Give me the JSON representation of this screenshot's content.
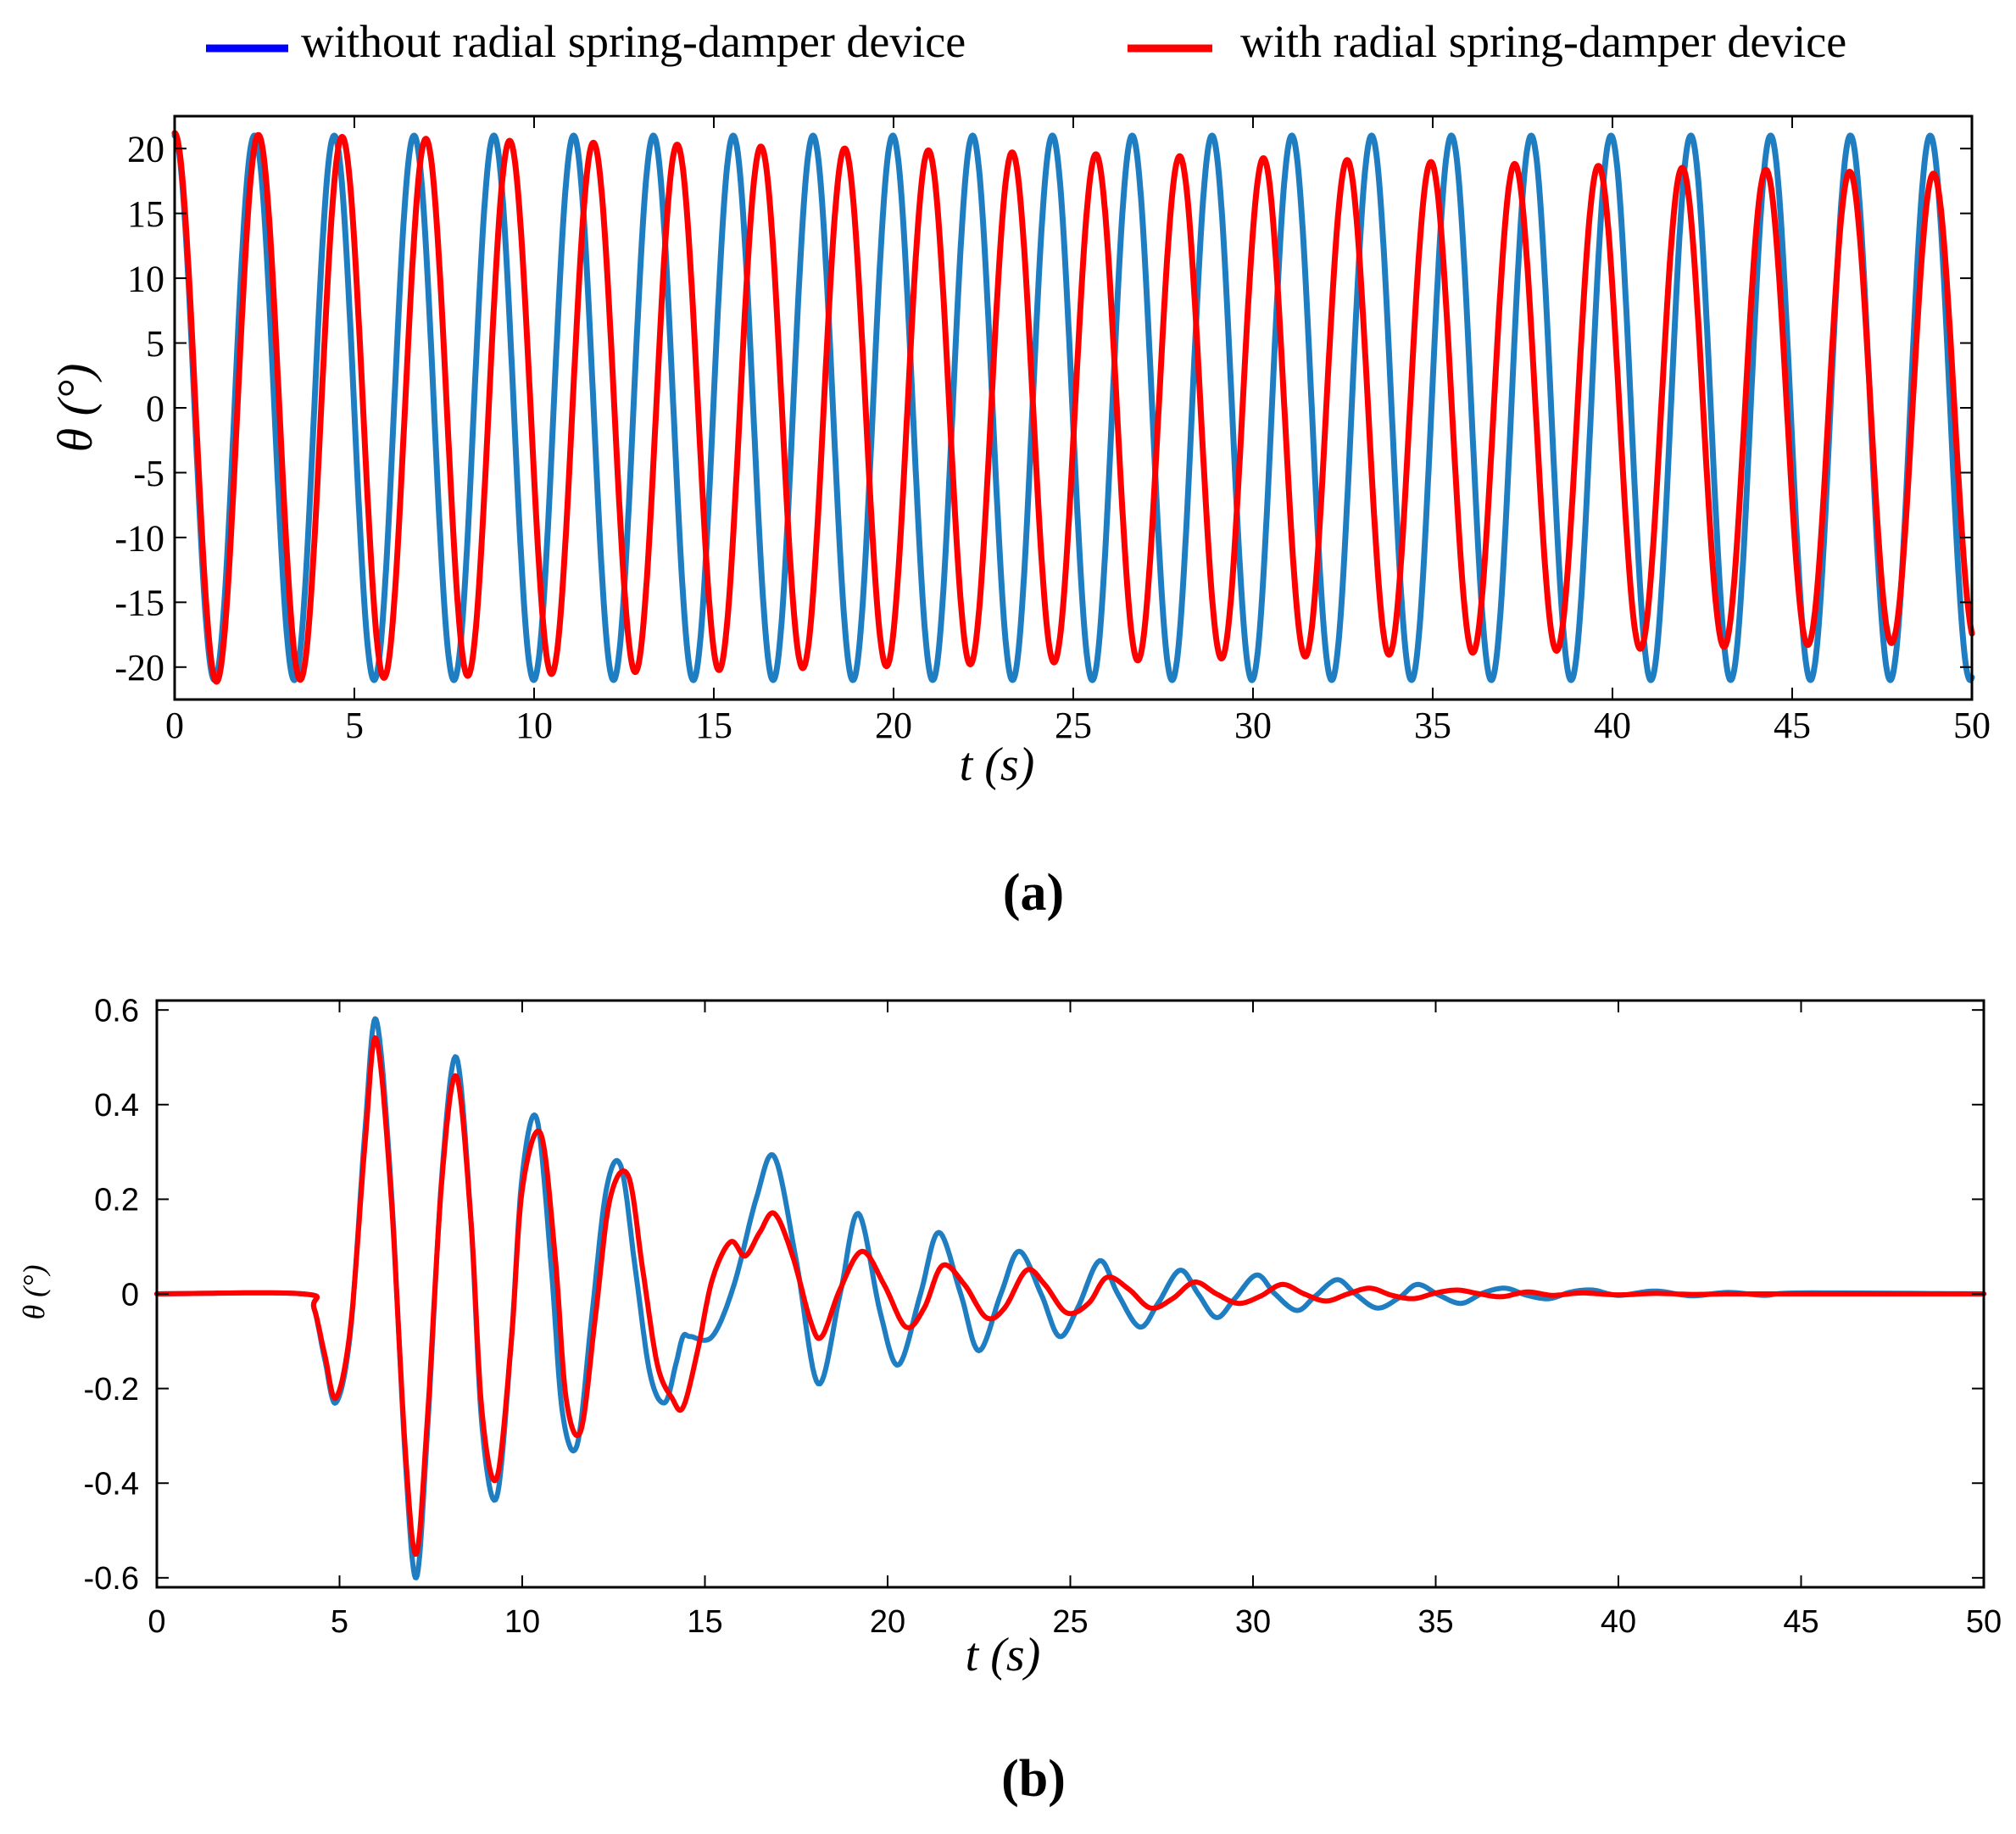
{
  "legend": {
    "items": [
      {
        "label": "without radial spring-damper device",
        "color": "#0000ff"
      },
      {
        "label": "with radial spring-damper device",
        "color": "#ff0000"
      }
    ]
  },
  "colors": {
    "series_without": "#1f7ec2",
    "series_with": "#ff0000",
    "axis": "#000000"
  },
  "chart_data": [
    {
      "panel": "(a)",
      "type": "line",
      "xlabel": "t (s)",
      "ylabel": "θ (°)",
      "xlim": [
        0,
        50
      ],
      "ylim": [
        -22.5,
        22.5
      ],
      "x_ticks": [
        0,
        5,
        10,
        15,
        20,
        25,
        30,
        35,
        40,
        45,
        50
      ],
      "y_ticks": [
        20,
        15,
        10,
        5,
        0,
        -5,
        -10,
        -15,
        -20
      ],
      "series": [
        {
          "name": "without radial spring-damper device",
          "model": "cosine",
          "amplitude_start": 21.0,
          "amplitude_end": 21.0,
          "period": 2.22,
          "phase": 0.0
        },
        {
          "name": "with radial spring-damper device",
          "model": "cosine",
          "amplitude_start": 21.2,
          "amplitude_end": 18.0,
          "period": 2.33,
          "phase": 0.3
        }
      ]
    },
    {
      "panel": "(b)",
      "type": "line",
      "xlabel": "t (s)",
      "ylabel": "θ (°)",
      "xlim": [
        0,
        50
      ],
      "ylim": [
        -0.62,
        0.62
      ],
      "x_ticks": [
        0,
        5,
        10,
        15,
        20,
        25,
        30,
        35,
        40,
        45,
        50
      ],
      "y_ticks": [
        0.6,
        0.4,
        0.2,
        0,
        -0.2,
        -0.4,
        -0.6
      ],
      "series": [
        {
          "name": "without radial spring-damper device",
          "x": [
            0,
            4.0,
            4.3,
            4.6,
            4.9,
            5.3,
            5.7,
            6.0,
            6.4,
            6.8,
            7.1,
            7.4,
            7.8,
            8.2,
            8.6,
            8.9,
            9.3,
            9.7,
            10.0,
            10.4,
            10.8,
            11.1,
            11.5,
            11.9,
            12.3,
            12.7,
            13.1,
            13.5,
            13.9,
            14.2,
            14.4,
            14.6,
            15.2,
            15.8,
            16.4,
            16.9,
            17.5,
            18.1,
            18.7,
            19.2,
            19.8,
            20.3,
            20.9,
            21.4,
            22.0,
            22.5,
            23.1,
            23.6,
            24.2,
            24.7,
            25.2,
            25.8,
            26.3,
            26.9,
            27.4,
            28.0,
            28.5,
            29.0,
            29.5,
            30.1,
            30.6,
            31.2,
            31.7,
            32.3,
            32.8,
            33.4,
            34.0,
            34.5,
            35.1,
            35.7,
            36.3,
            36.9,
            37.5,
            38.1,
            38.7,
            39.3,
            40.0,
            41.0,
            42.0,
            43.0,
            44.0,
            45.0,
            50.0
          ],
          "y": [
            0,
            0,
            -0.03,
            -0.14,
            -0.23,
            -0.08,
            0.35,
            0.58,
            0.24,
            -0.35,
            -0.6,
            -0.3,
            0.25,
            0.5,
            0.15,
            -0.28,
            -0.43,
            -0.1,
            0.25,
            0.37,
            0.05,
            -0.25,
            -0.32,
            -0.05,
            0.22,
            0.27,
            0.05,
            -0.17,
            -0.23,
            -0.15,
            -0.09,
            -0.09,
            -0.09,
            0.02,
            0.2,
            0.29,
            0.07,
            -0.19,
            0.0,
            0.17,
            -0.04,
            -0.15,
            0.0,
            0.13,
            0.0,
            -0.12,
            0.0,
            0.09,
            0.0,
            -0.09,
            -0.03,
            0.07,
            0.0,
            -0.07,
            -0.02,
            0.05,
            0.0,
            -0.05,
            -0.01,
            0.04,
            0.0,
            -0.035,
            -0.005,
            0.03,
            0.0,
            -0.03,
            -0.008,
            0.02,
            -0.003,
            -0.02,
            0.002,
            0.012,
            -0.003,
            -0.01,
            0.004,
            0.008,
            -0.003,
            0.006,
            -0.004,
            0.003,
            -0.003,
            0.002,
            0
          ]
        },
        {
          "name": "with radial spring-damper device",
          "x": [
            0,
            4.0,
            4.3,
            4.6,
            4.9,
            5.3,
            5.7,
            6.0,
            6.4,
            6.8,
            7.1,
            7.4,
            7.8,
            8.2,
            8.6,
            8.9,
            9.3,
            9.7,
            10.0,
            10.5,
            10.9,
            11.2,
            11.6,
            12.0,
            12.4,
            12.9,
            13.3,
            13.7,
            14.1,
            14.4,
            14.8,
            15.2,
            15.7,
            16.1,
            16.5,
            16.9,
            17.4,
            17.9,
            18.2,
            18.7,
            19.3,
            19.9,
            20.5,
            21.0,
            21.5,
            22.1,
            22.7,
            23.2,
            23.8,
            24.3,
            24.9,
            25.5,
            26.0,
            26.6,
            27.2,
            27.8,
            28.4,
            29.0,
            29.6,
            30.2,
            30.8,
            31.4,
            32.0,
            32.6,
            33.2,
            33.8,
            34.4,
            35.0,
            35.6,
            36.2,
            36.8,
            37.5,
            38.2,
            39.0,
            40.0,
            41.0,
            42.0,
            43.0,
            44.0,
            45.0,
            50.0
          ],
          "y": [
            0,
            0,
            -0.03,
            -0.13,
            -0.22,
            -0.07,
            0.32,
            0.54,
            0.22,
            -0.33,
            -0.55,
            -0.27,
            0.24,
            0.46,
            0.15,
            -0.25,
            -0.39,
            -0.1,
            0.22,
            0.34,
            0.08,
            -0.22,
            -0.29,
            -0.05,
            0.2,
            0.25,
            0.05,
            -0.15,
            -0.22,
            -0.24,
            -0.12,
            0.03,
            0.11,
            0.08,
            0.13,
            0.17,
            0.08,
            -0.06,
            -0.09,
            0.01,
            0.09,
            0.02,
            -0.07,
            -0.03,
            0.06,
            0.02,
            -0.05,
            -0.03,
            0.05,
            0.02,
            -0.04,
            -0.02,
            0.035,
            0.01,
            -0.03,
            -0.01,
            0.025,
            0.0,
            -0.02,
            -0.005,
            0.02,
            0.0,
            -0.015,
            0.0,
            0.012,
            -0.003,
            -0.01,
            0.002,
            0.008,
            0.0,
            -0.006,
            0.004,
            -0.003,
            0.002,
            -0.002,
            0.001,
            -0.001,
            0.0,
            0.0,
            0.0,
            0
          ]
        }
      ]
    }
  ]
}
